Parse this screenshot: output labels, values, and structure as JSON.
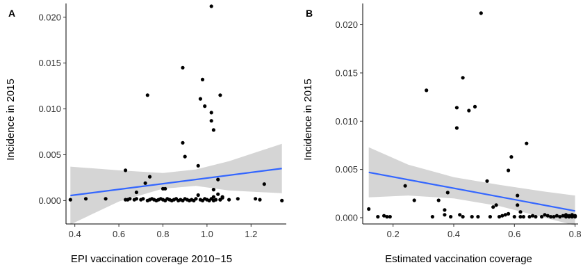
{
  "chart_data": [
    {
      "type": "scatter",
      "panel_label": "A",
      "title": "",
      "xlabel": "EPI vaccination coverage 2010−15",
      "ylabel": "Incidence in 2015",
      "xlim": [
        0.36,
        1.36
      ],
      "ylim": [
        -0.00255,
        0.0215
      ],
      "xticks": [
        0.4,
        0.6,
        0.8,
        1.0,
        1.2
      ],
      "xtick_labels": [
        "0.4",
        "0.6",
        "0.8",
        "1.0",
        "1.2"
      ],
      "yticks": [
        0.0,
        0.005,
        0.01,
        0.015,
        0.02
      ],
      "ytick_labels": [
        "0.000",
        "0.005",
        "0.010",
        "0.015",
        "0.020"
      ],
      "grid": false,
      "points": {
        "x": [
          0.38,
          0.45,
          0.54,
          0.63,
          0.64,
          0.65,
          0.67,
          0.68,
          0.68,
          0.7,
          0.71,
          0.73,
          0.74,
          0.75,
          0.76,
          0.77,
          0.78,
          0.79,
          0.8,
          0.81,
          0.82,
          0.83,
          0.84,
          0.85,
          0.86,
          0.87,
          0.88,
          0.89,
          0.9,
          0.91,
          0.92,
          0.93,
          0.94,
          0.95,
          0.96,
          0.97,
          0.98,
          0.99,
          1.0,
          1.01,
          1.02,
          1.03,
          1.04,
          1.05,
          1.06,
          1.07,
          1.1,
          1.14,
          1.22,
          1.24,
          1.26,
          1.34,
          0.63,
          0.72,
          0.74,
          0.8,
          0.81,
          0.89,
          0.89,
          0.9,
          0.96,
          0.97,
          0.98,
          0.99,
          1.02,
          1.02,
          1.02,
          1.03,
          1.03,
          1.05,
          1.06,
          1.06,
          1.07,
          1.03,
          0.73
        ],
        "y": [
          0.0001,
          0.0002,
          0.0002,
          0.0001,
          0.0001,
          0.0002,
          0.0001,
          0.0002,
          0.0009,
          0.0001,
          0.0002,
          0.0,
          0.0001,
          0.0002,
          0.0001,
          0.0,
          0.0001,
          0.0002,
          0.0001,
          0.0,
          0.0002,
          0.0001,
          0.0,
          0.0001,
          0.0002,
          0.0,
          0.0001,
          0.0,
          0.0002,
          0.0001,
          0.0,
          0.0001,
          0.0,
          0.0002,
          0.0006,
          0.0001,
          0.0,
          0.0002,
          0.0001,
          0.0,
          0.0002,
          0.0,
          0.0001,
          0.0007,
          0.0001,
          0.0004,
          0.0001,
          0.0002,
          0.0002,
          0.0001,
          0.0018,
          0.0,
          0.0033,
          0.0019,
          0.0026,
          0.0013,
          0.0013,
          0.0063,
          0.0145,
          0.0048,
          0.0038,
          0.0111,
          0.0132,
          0.0103,
          0.0212,
          0.0087,
          0.0096,
          0.0077,
          0.0012,
          0.0023,
          0.0115,
          0.0001,
          0.0003,
          0.0004,
          0.0115
        ]
      },
      "fit": {
        "x": [
          0.38,
          1.34
        ],
        "y": [
          0.00055,
          0.0035
        ]
      },
      "band": {
        "x": [
          0.38,
          0.6,
          0.8,
          0.95,
          1.1,
          1.34
        ],
        "upper": [
          0.0037,
          0.0033,
          0.003,
          0.0034,
          0.0043,
          0.0062
        ],
        "lower": [
          -0.0026,
          -0.0001,
          0.0013,
          0.0016,
          0.0011,
          0.0008
        ]
      },
      "colors": {
        "points": "#000000",
        "line": "#3366ff",
        "band": "#d3d3d3"
      }
    },
    {
      "type": "scatter",
      "panel_label": "B",
      "title": "",
      "xlabel": "Estimated vaccination coverage",
      "ylabel": "Incidence in 2015",
      "xlim": [
        0.1,
        0.81
      ],
      "ylim": [
        -0.00065,
        0.0222
      ],
      "xticks": [
        0.2,
        0.4,
        0.6,
        0.8
      ],
      "xtick_labels": [
        "0.2",
        "0.4",
        "0.6",
        "0.8"
      ],
      "yticks": [
        0.0,
        0.005,
        0.01,
        0.015,
        0.02
      ],
      "ytick_labels": [
        "0.000",
        "0.005",
        "0.010",
        "0.015",
        "0.020"
      ],
      "grid": false,
      "points": {
        "x": [
          0.12,
          0.15,
          0.17,
          0.18,
          0.19,
          0.24,
          0.27,
          0.31,
          0.33,
          0.35,
          0.37,
          0.37,
          0.38,
          0.39,
          0.41,
          0.41,
          0.42,
          0.43,
          0.43,
          0.45,
          0.46,
          0.47,
          0.48,
          0.49,
          0.51,
          0.52,
          0.53,
          0.54,
          0.55,
          0.56,
          0.57,
          0.58,
          0.58,
          0.59,
          0.6,
          0.61,
          0.61,
          0.62,
          0.62,
          0.63,
          0.64,
          0.65,
          0.66,
          0.67,
          0.69,
          0.7,
          0.71,
          0.72,
          0.73,
          0.74,
          0.75,
          0.76,
          0.77,
          0.77,
          0.78,
          0.78,
          0.79,
          0.79,
          0.8,
          0.8
        ],
        "y": [
          0.0009,
          0.0001,
          0.0002,
          0.0001,
          0.0001,
          0.0033,
          0.0018,
          0.0132,
          0.0001,
          0.0018,
          0.0008,
          0.0003,
          0.0026,
          0.0001,
          0.0114,
          0.0093,
          0.0003,
          0.0145,
          0.0001,
          0.0111,
          0.0001,
          0.0115,
          0.0001,
          0.0212,
          0.0038,
          0.0001,
          0.0011,
          0.0013,
          0.0001,
          0.0002,
          0.0003,
          0.0049,
          0.0004,
          0.0063,
          0.0001,
          0.0023,
          0.0013,
          0.0001,
          0.0006,
          0.0001,
          0.0077,
          0.0001,
          0.0002,
          0.0001,
          0.0001,
          0.0003,
          0.0002,
          0.0001,
          0.0001,
          0.0002,
          0.0001,
          0.0002,
          0.0001,
          0.0003,
          0.0001,
          0.0002,
          0.0001,
          0.0003,
          0.0001,
          0.0002
        ]
      },
      "fit": {
        "x": [
          0.12,
          0.8
        ],
        "y": [
          0.0047,
          0.0007
        ]
      },
      "band": {
        "x": [
          0.12,
          0.25,
          0.4,
          0.55,
          0.7,
          0.8
        ],
        "upper": [
          0.0073,
          0.0055,
          0.0042,
          0.0034,
          0.0027,
          0.0023
        ],
        "lower": [
          0.0021,
          0.0023,
          0.002,
          0.0012,
          0.0,
          -0.0008
        ]
      },
      "colors": {
        "points": "#000000",
        "line": "#3366ff",
        "band": "#d3d3d3"
      }
    }
  ]
}
